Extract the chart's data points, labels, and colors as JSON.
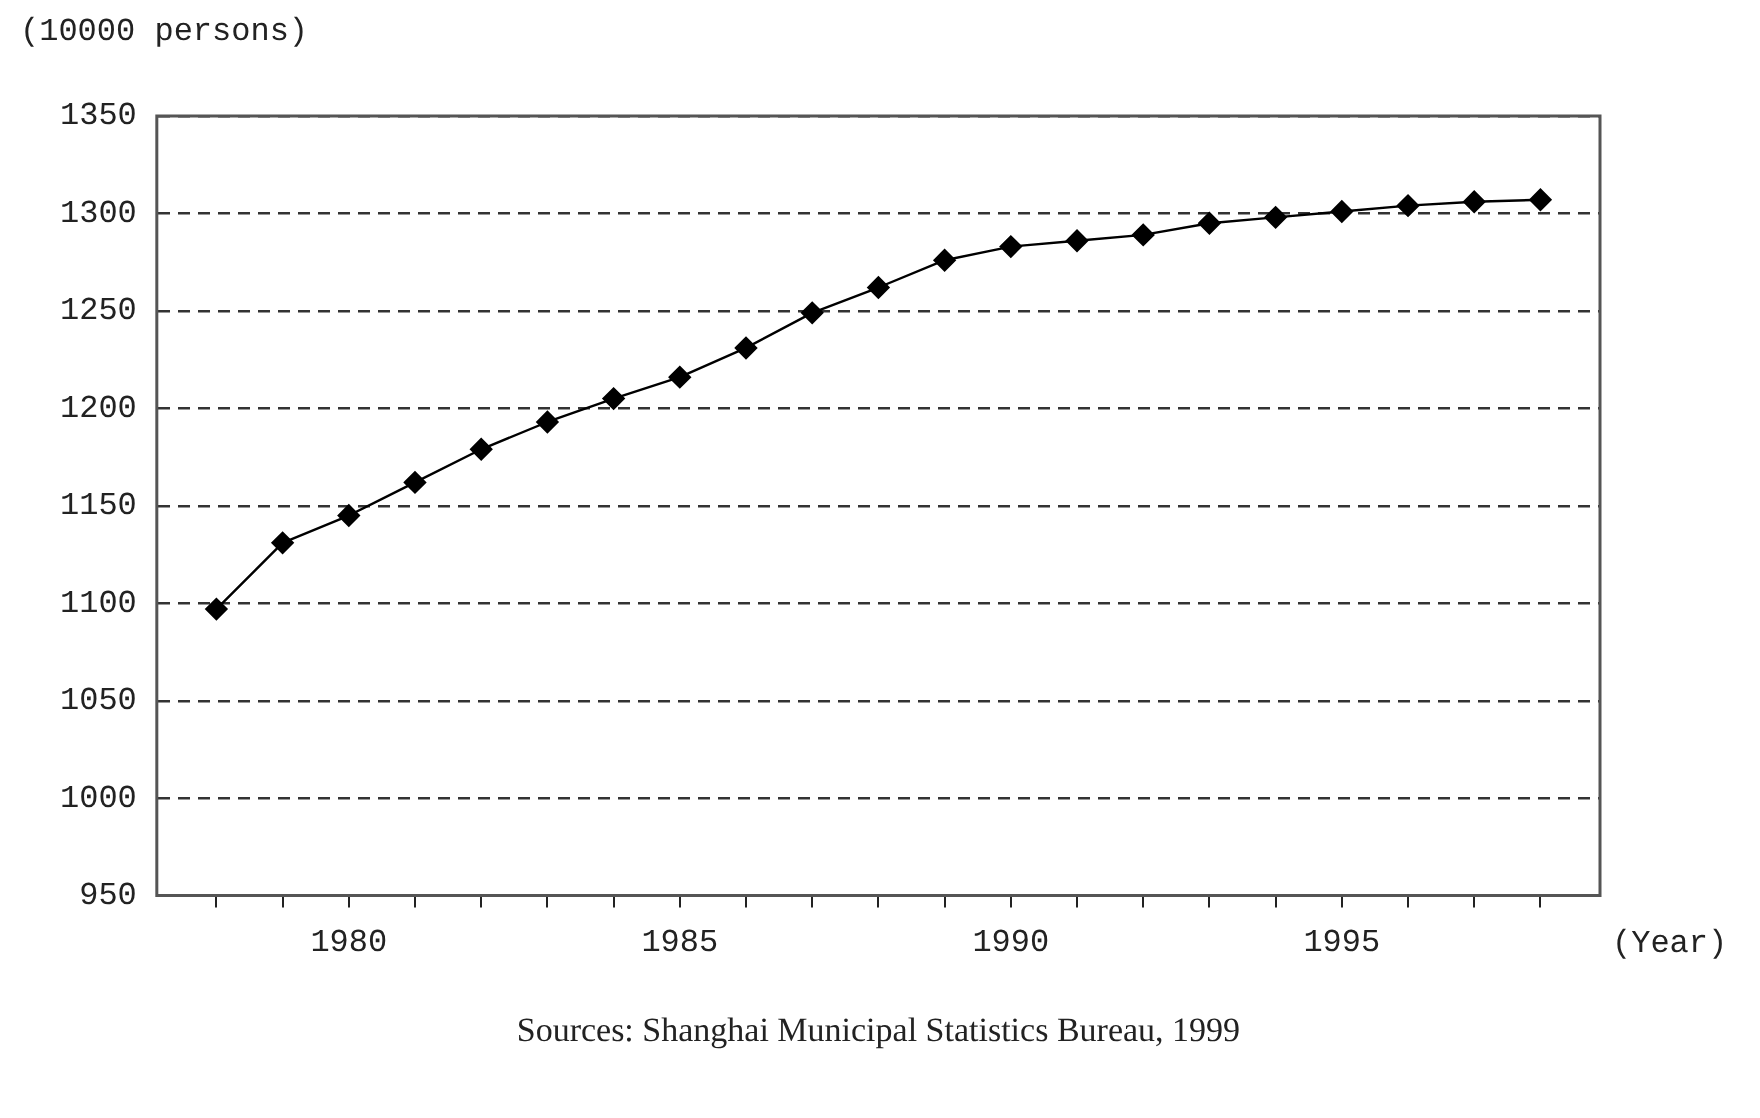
{
  "chart_data": {
    "type": "line",
    "ylabel": "(10000 persons)",
    "xlabel": "(Year)",
    "annotations": [
      "Sources: Shanghai Municipal Statistics Bureau, 1999"
    ],
    "x": [
      1978,
      1979,
      1980,
      1981,
      1982,
      1983,
      1984,
      1985,
      1986,
      1987,
      1988,
      1989,
      1990,
      1991,
      1992,
      1993,
      1994,
      1995,
      1996,
      1997,
      1998
    ],
    "series": [
      {
        "color": "#000000",
        "values": [
          1097,
          1131,
          1145,
          1162,
          1179,
          1193,
          1205,
          1216,
          1231,
          1249,
          1262,
          1276,
          1283,
          1286,
          1289,
          1295,
          1298,
          1301,
          1304,
          1306,
          1307
        ]
      }
    ],
    "xlim": [
      1977.1,
      1998.9
    ],
    "xticks": [
      {
        "value": 1978,
        "label": null
      },
      {
        "value": 1979,
        "label": null
      },
      1980,
      {
        "value": 1981,
        "label": null
      },
      {
        "value": 1982,
        "label": null
      },
      {
        "value": 1983,
        "label": null
      },
      {
        "value": 1984,
        "label": null
      },
      1985,
      {
        "value": 1986,
        "label": null
      },
      {
        "value": 1987,
        "label": null
      },
      {
        "value": 1988,
        "label": null
      },
      {
        "value": 1989,
        "label": null
      },
      1990,
      {
        "value": 1991,
        "label": null
      },
      {
        "value": 1992,
        "label": null
      },
      {
        "value": 1993,
        "label": null
      },
      {
        "value": 1994,
        "label": null
      },
      1995,
      {
        "value": 1996,
        "label": null
      },
      {
        "value": 1997,
        "label": null
      },
      {
        "value": 1998,
        "label": null
      }
    ],
    "ylim": [
      950,
      1350
    ],
    "yticks": [
      950,
      1000,
      1050,
      1100,
      1150,
      1200,
      1250,
      1300,
      1350
    ],
    "grid": "y",
    "marker": "diamond",
    "line_style": "solid",
    "legend": false
  }
}
